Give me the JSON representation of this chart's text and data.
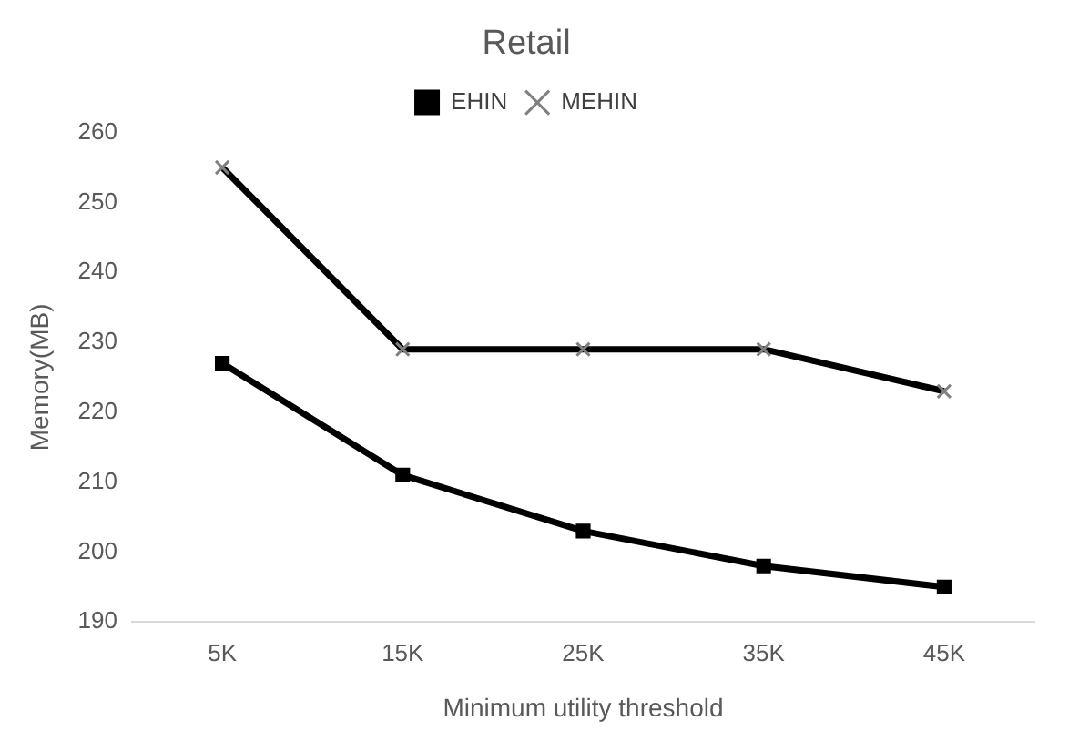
{
  "chart_data": {
    "type": "line",
    "title": "Retail",
    "xlabel": "Minimum utility threshold",
    "ylabel": "Memory(MB)",
    "categories": [
      "5K",
      "15K",
      "25K",
      "35K",
      "45K"
    ],
    "series": [
      {
        "name": "EHIN",
        "color": "#000000",
        "marker": "square",
        "values": [
          227,
          211,
          203,
          198,
          195
        ]
      },
      {
        "name": "MEHIN",
        "color": "#000000",
        "marker": "cross",
        "values": [
          255,
          229,
          229,
          229,
          223
        ]
      }
    ],
    "ylim": [
      190,
      260
    ],
    "yticks": [
      190,
      200,
      210,
      220,
      230,
      240,
      250,
      260
    ],
    "grid": false,
    "legend": "top",
    "line_style": "solid"
  }
}
